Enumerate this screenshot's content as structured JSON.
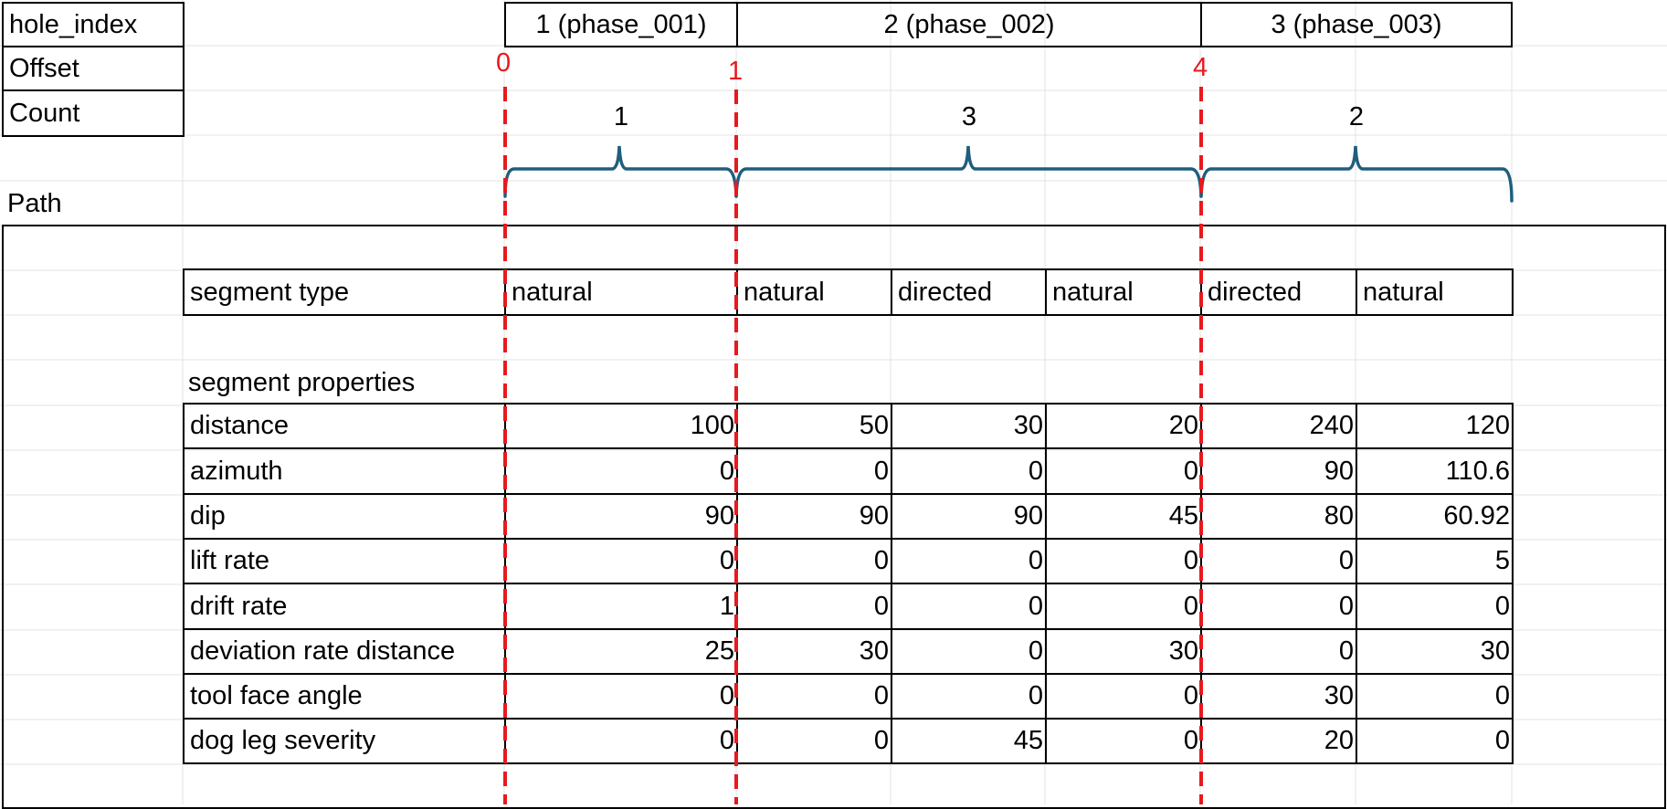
{
  "header_labels": {
    "hole_index": "hole_index",
    "offset": "Offset",
    "count": "Count",
    "path": "Path"
  },
  "hole_index": [
    "1 (phase_001)",
    "2 (phase_002)",
    "3 (phase_003)"
  ],
  "offsets": [
    "0",
    "1",
    "4"
  ],
  "counts": [
    "1",
    "3",
    "2"
  ],
  "segment_type_label": "segment type",
  "segment_types": [
    "natural",
    "natural",
    "directed",
    "natural",
    "directed",
    "natural"
  ],
  "segment_properties_label": "segment properties",
  "properties": [
    {
      "label": "distance",
      "values": [
        "100",
        "50",
        "30",
        "20",
        "240",
        "120"
      ]
    },
    {
      "label": "azimuth",
      "values": [
        "0",
        "0",
        "0",
        "0",
        "90",
        "110.6"
      ]
    },
    {
      "label": "dip",
      "values": [
        "90",
        "90",
        "90",
        "45",
        "80",
        "60.92"
      ]
    },
    {
      "label": "lift rate",
      "values": [
        "0",
        "0",
        "0",
        "0",
        "0",
        "5"
      ]
    },
    {
      "label": "drift rate",
      "values": [
        "1",
        "0",
        "0",
        "0",
        "0",
        "0"
      ]
    },
    {
      "label": "deviation rate distance",
      "values": [
        "25",
        "30",
        "0",
        "30",
        "0",
        "30"
      ]
    },
    {
      "label": "tool face angle",
      "values": [
        "0",
        "0",
        "0",
        "0",
        "30",
        "0"
      ]
    },
    {
      "label": "dog leg severity",
      "values": [
        "0",
        "0",
        "45",
        "0",
        "20",
        "0"
      ]
    }
  ],
  "colors": {
    "marker_red": "#e8191e",
    "brace_blue": "#1f5e7d",
    "gridline": "#e3e3e3"
  }
}
